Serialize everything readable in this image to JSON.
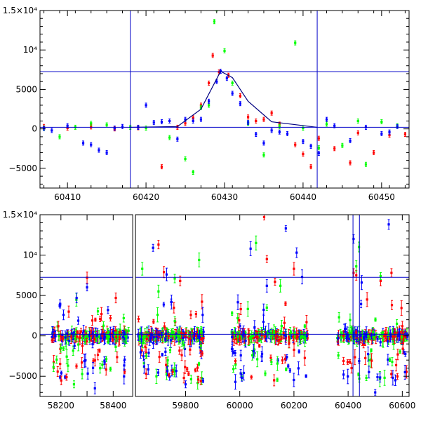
{
  "chart_data": [
    {
      "type": "scatter",
      "panel": "top",
      "xlim": [
        60406.5,
        60453.5
      ],
      "ylim": [
        -7500,
        15000
      ],
      "xticks": [
        60410,
        60420,
        60430,
        60440,
        60450
      ],
      "yticks": [
        {
          "value": -5000,
          "label": "−5000"
        },
        {
          "value": 0,
          "label": "0"
        },
        {
          "value": 5000,
          "label": "5000"
        },
        {
          "value": 10000,
          "label": "10⁴"
        },
        {
          "value": 15000,
          "label": "1.5×10⁴"
        }
      ],
      "reference_lines": {
        "vertical": [
          60418.0,
          60441.8
        ],
        "horizontal": [
          7250,
          200
        ]
      },
      "model_curve": [
        [
          60418,
          200
        ],
        [
          60424,
          300
        ],
        [
          60427,
          2500
        ],
        [
          60429.5,
          7300
        ],
        [
          60431,
          6500
        ],
        [
          60433,
          3500
        ],
        [
          60436,
          900
        ],
        [
          60441.8,
          200
        ]
      ],
      "series": [
        {
          "name": "",
          "color": "#ff0000",
          "points": [
            [
              60407,
              300
            ],
            [
              60410,
              100
            ],
            [
              60413,
              250
            ],
            [
              60416,
              0
            ],
            [
              60419,
              150
            ],
            [
              60422,
              -4800
            ],
            [
              60424,
              200
            ],
            [
              60425,
              700
            ],
            [
              60426,
              1400
            ],
            [
              60427,
              3000
            ],
            [
              60428,
              5800
            ],
            [
              60428.5,
              9300
            ],
            [
              60429.3,
              7200
            ],
            [
              60430.5,
              6800
            ],
            [
              60432,
              4200
            ],
            [
              60433,
              1500
            ],
            [
              60434,
              1000
            ],
            [
              60435,
              1200
            ],
            [
              60436,
              2000
            ],
            [
              60437,
              600
            ],
            [
              60439,
              -2000
            ],
            [
              60440,
              -3200
            ],
            [
              60441,
              -4800
            ],
            [
              60442,
              -1200
            ],
            [
              60444,
              -2500
            ],
            [
              60446,
              -4300
            ],
            [
              60447,
              -500
            ],
            [
              60449,
              -3000
            ],
            [
              60451,
              -800
            ],
            [
              60453,
              -700
            ]
          ]
        },
        {
          "name": "",
          "color": "#00ff00",
          "points": [
            [
              60407,
              100
            ],
            [
              60409,
              -1000
            ],
            [
              60411,
              200
            ],
            [
              60413,
              700
            ],
            [
              60415,
              500
            ],
            [
              60418,
              200
            ],
            [
              60420,
              100
            ],
            [
              60423,
              -1100
            ],
            [
              60425,
              -3800
            ],
            [
              60426,
              -5500
            ],
            [
              60427,
              2700
            ],
            [
              60428,
              3000
            ],
            [
              60428.7,
              13600
            ],
            [
              60429,
              15200
            ],
            [
              60430,
              9900
            ],
            [
              60431,
              5800
            ],
            [
              60433,
              700
            ],
            [
              60435,
              -3300
            ],
            [
              60437,
              300
            ],
            [
              60439,
              10900
            ],
            [
              60440,
              100
            ],
            [
              60442,
              -2400
            ],
            [
              60443,
              600
            ],
            [
              60445,
              -2100
            ],
            [
              60447,
              1000
            ],
            [
              60448,
              -4500
            ],
            [
              60450,
              900
            ],
            [
              60452,
              400
            ]
          ]
        },
        {
          "name": "",
          "color": "#0000ff",
          "points": [
            [
              60407,
              50
            ],
            [
              60408,
              -200
            ],
            [
              60410,
              400
            ],
            [
              60412,
              -1800
            ],
            [
              60413,
              -2000
            ],
            [
              60414,
              -2700
            ],
            [
              60415,
              -3000
            ],
            [
              60416,
              100
            ],
            [
              60417,
              300
            ],
            [
              60419,
              200
            ],
            [
              60420,
              3000
            ],
            [
              60421,
              800
            ],
            [
              60422,
              900
            ],
            [
              60423,
              1000
            ],
            [
              60424,
              -1300
            ],
            [
              60425,
              1200
            ],
            [
              60426,
              1000
            ],
            [
              60427,
              1200
            ],
            [
              60428,
              3500
            ],
            [
              60429,
              6000
            ],
            [
              60429.5,
              7300
            ],
            [
              60430.3,
              6400
            ],
            [
              60431,
              4500
            ],
            [
              60432,
              3200
            ],
            [
              60433,
              800
            ],
            [
              60434,
              -700
            ],
            [
              60435,
              -1800
            ],
            [
              60436,
              -200
            ],
            [
              60437,
              -400
            ],
            [
              60438,
              -600
            ],
            [
              60440,
              -1600
            ],
            [
              60441,
              -2200
            ],
            [
              60442,
              -3100
            ],
            [
              60443,
              1200
            ],
            [
              60444,
              400
            ],
            [
              60446,
              -1500
            ],
            [
              60448,
              200
            ],
            [
              60450,
              -600
            ],
            [
              60451,
              -400
            ],
            [
              60452,
              300
            ]
          ]
        }
      ]
    },
    {
      "type": "scatter",
      "panel": "bottom",
      "xlim": [
        58120,
        60625
      ],
      "axis_break": {
        "left_range": [
          58120,
          58480
        ],
        "right_range": [
          59610,
          60625
        ]
      },
      "ylim": [
        -7500,
        15000
      ],
      "xticks": [
        58200,
        58300,
        58400,
        59800,
        60000,
        60200,
        60400,
        60600
      ],
      "xtick_labels": [
        58200,
        58400,
        59800,
        60000,
        60200,
        60400,
        60600
      ],
      "yticks": [
        {
          "value": -5000,
          "label": "−5000"
        },
        {
          "value": 0,
          "label": "0"
        },
        {
          "value": 5000,
          "label": "5000"
        },
        {
          "value": 10000,
          "label": "10⁴"
        },
        {
          "value": 15000,
          "label": "1.5×10⁴"
        }
      ],
      "reference_lines": {
        "vertical": [
          60418.0,
          60441.8
        ],
        "horizontal": [
          7250,
          200
        ]
      },
      "observing_seasons": [
        [
          58165,
          58460
        ],
        [
          59625,
          59870
        ],
        [
          59970,
          60250
        ],
        [
          60360,
          60620
        ]
      ],
      "series": [
        {
          "name": "",
          "color": "#ff0000",
          "points": [
            [
              58190,
              1200
            ],
            [
              58230,
              3000
            ],
            [
              58280,
              -3300
            ],
            [
              58300,
              7200
            ],
            [
              58320,
              1900
            ],
            [
              58350,
              2100
            ],
            [
              58410,
              4700
            ],
            [
              59700,
              11300
            ],
            [
              59720,
              7900
            ],
            [
              59780,
              6800
            ],
            [
              60090,
              14700
            ],
            [
              60100,
              9500
            ],
            [
              60130,
              6700
            ],
            [
              60200,
              8300
            ],
            [
              60420,
              7800
            ],
            [
              60430,
              7500
            ],
            [
              60470,
              4500
            ],
            [
              60520,
              6800
            ],
            [
              60560,
              7800
            ],
            [
              60600,
              1200
            ]
          ]
        },
        {
          "name": "",
          "color": "#00ff00",
          "points": [
            [
              58200,
              -1500
            ],
            [
              58250,
              -6000
            ],
            [
              58350,
              -4000
            ],
            [
              59640,
              8300
            ],
            [
              59700,
              5500
            ],
            [
              59760,
              7100
            ],
            [
              59850,
              9400
            ],
            [
              60060,
              11500
            ],
            [
              60100,
              3500
            ],
            [
              60150,
              6200
            ],
            [
              60430,
              8600
            ],
            [
              60440,
              11000
            ],
            [
              60520,
              7400
            ],
            [
              60580,
              1500
            ]
          ]
        },
        {
          "name": "",
          "color": "#0000ff",
          "points": [
            [
              58210,
              2600
            ],
            [
              58260,
              4700
            ],
            [
              58300,
              6000
            ],
            [
              58330,
              -6500
            ],
            [
              58380,
              3200
            ],
            [
              59680,
              10900
            ],
            [
              59730,
              7600
            ],
            [
              59800,
              -6000
            ],
            [
              60040,
              10800
            ],
            [
              60100,
              6200
            ],
            [
              60170,
              13300
            ],
            [
              60210,
              10300
            ],
            [
              60230,
              7300
            ],
            [
              60420,
              12000
            ],
            [
              60450,
              6600
            ],
            [
              60500,
              -7000
            ],
            [
              60550,
              13800
            ],
            [
              60610,
              -4500
            ]
          ]
        }
      ]
    }
  ]
}
